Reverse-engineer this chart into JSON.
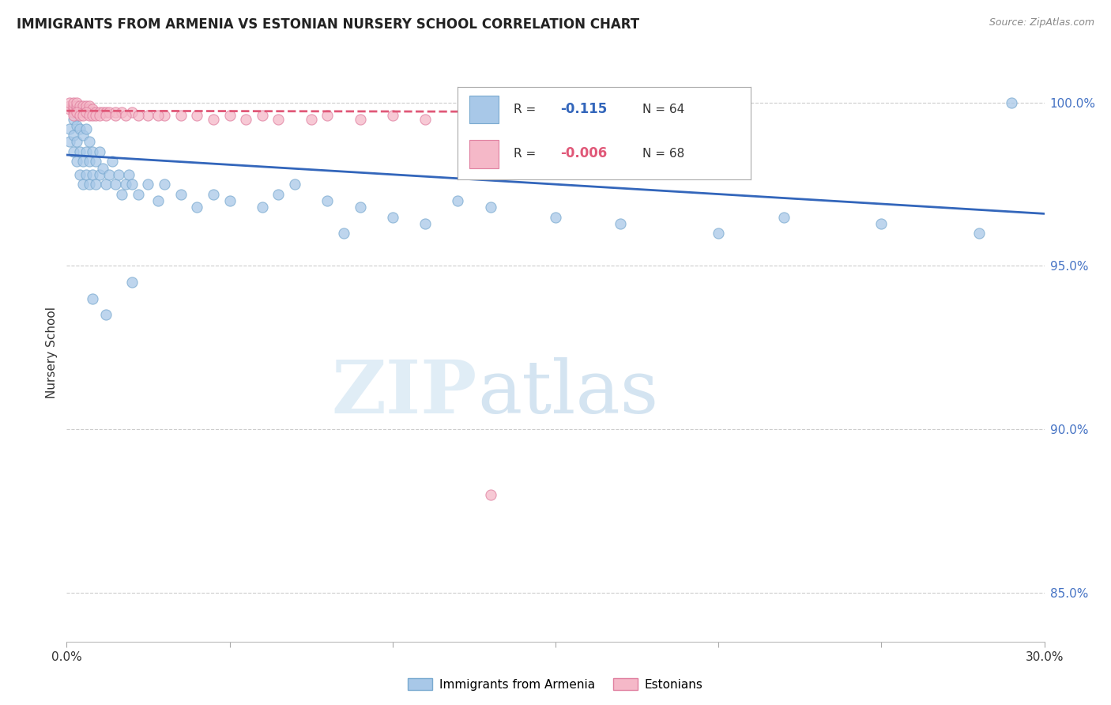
{
  "title": "IMMIGRANTS FROM ARMENIA VS ESTONIAN NURSERY SCHOOL CORRELATION CHART",
  "source": "Source: ZipAtlas.com",
  "ylabel": "Nursery School",
  "ytick_labels": [
    "100.0%",
    "95.0%",
    "90.0%",
    "85.0%"
  ],
  "ytick_values": [
    1.0,
    0.95,
    0.9,
    0.85
  ],
  "xlim": [
    0.0,
    0.3
  ],
  "ylim": [
    0.835,
    1.012
  ],
  "blue_color": "#a8c8e8",
  "blue_edge_color": "#7aaad0",
  "blue_line_color": "#3366bb",
  "pink_color": "#f5b8c8",
  "pink_edge_color": "#e080a0",
  "pink_line_color": "#e05878",
  "watermark_zip_color": "#c8dff0",
  "watermark_atlas_color": "#a0c4e0",
  "blue_scatter_x": [
    0.001,
    0.001,
    0.002,
    0.002,
    0.002,
    0.003,
    0.003,
    0.003,
    0.004,
    0.004,
    0.004,
    0.005,
    0.005,
    0.005,
    0.006,
    0.006,
    0.006,
    0.007,
    0.007,
    0.007,
    0.008,
    0.008,
    0.009,
    0.009,
    0.01,
    0.01,
    0.011,
    0.012,
    0.013,
    0.014,
    0.015,
    0.016,
    0.017,
    0.018,
    0.019,
    0.02,
    0.022,
    0.025,
    0.028,
    0.03,
    0.035,
    0.04,
    0.045,
    0.05,
    0.06,
    0.065,
    0.07,
    0.08,
    0.085,
    0.09,
    0.1,
    0.11,
    0.12,
    0.13,
    0.15,
    0.17,
    0.2,
    0.22,
    0.25,
    0.28,
    0.29,
    0.008,
    0.012,
    0.02
  ],
  "blue_scatter_y": [
    0.988,
    0.992,
    0.985,
    0.99,
    0.995,
    0.982,
    0.988,
    0.993,
    0.978,
    0.985,
    0.992,
    0.975,
    0.982,
    0.99,
    0.978,
    0.985,
    0.992,
    0.975,
    0.982,
    0.988,
    0.978,
    0.985,
    0.975,
    0.982,
    0.978,
    0.985,
    0.98,
    0.975,
    0.978,
    0.982,
    0.975,
    0.978,
    0.972,
    0.975,
    0.978,
    0.975,
    0.972,
    0.975,
    0.97,
    0.975,
    0.972,
    0.968,
    0.972,
    0.97,
    0.968,
    0.972,
    0.975,
    0.97,
    0.96,
    0.968,
    0.965,
    0.963,
    0.97,
    0.968,
    0.965,
    0.963,
    0.96,
    0.965,
    0.963,
    0.96,
    1.0,
    0.94,
    0.935,
    0.945
  ],
  "pink_scatter_x": [
    0.001,
    0.001,
    0.001,
    0.002,
    0.002,
    0.002,
    0.002,
    0.003,
    0.003,
    0.003,
    0.003,
    0.004,
    0.004,
    0.004,
    0.005,
    0.005,
    0.005,
    0.006,
    0.006,
    0.006,
    0.007,
    0.007,
    0.007,
    0.008,
    0.008,
    0.009,
    0.01,
    0.011,
    0.012,
    0.013,
    0.015,
    0.017,
    0.02,
    0.025,
    0.03,
    0.04,
    0.05,
    0.06,
    0.08,
    0.1,
    0.13,
    0.15,
    0.17,
    0.002,
    0.003,
    0.004,
    0.005,
    0.006,
    0.007,
    0.008,
    0.009,
    0.01,
    0.012,
    0.015,
    0.018,
    0.022,
    0.028,
    0.035,
    0.045,
    0.055,
    0.065,
    0.075,
    0.09,
    0.11,
    0.13,
    0.16,
    0.19,
    0.13
  ],
  "pink_scatter_y": [
    0.998,
    0.999,
    1.0,
    0.997,
    0.998,
    0.999,
    1.0,
    0.997,
    0.998,
    0.999,
    1.0,
    0.997,
    0.998,
    0.999,
    0.997,
    0.998,
    0.999,
    0.997,
    0.998,
    0.999,
    0.997,
    0.998,
    0.999,
    0.997,
    0.998,
    0.997,
    0.997,
    0.997,
    0.997,
    0.997,
    0.997,
    0.997,
    0.997,
    0.996,
    0.996,
    0.996,
    0.996,
    0.996,
    0.996,
    0.996,
    0.996,
    0.996,
    0.996,
    0.996,
    0.997,
    0.996,
    0.996,
    0.997,
    0.996,
    0.996,
    0.996,
    0.996,
    0.996,
    0.996,
    0.996,
    0.996,
    0.996,
    0.996,
    0.995,
    0.995,
    0.995,
    0.995,
    0.995,
    0.995,
    0.995,
    0.995,
    0.995,
    0.88
  ],
  "blue_trend_x": [
    0.0,
    0.3
  ],
  "blue_trend_y": [
    0.984,
    0.966
  ],
  "pink_trend_x": [
    0.0,
    0.155
  ],
  "pink_trend_y": [
    0.9975,
    0.9972
  ]
}
